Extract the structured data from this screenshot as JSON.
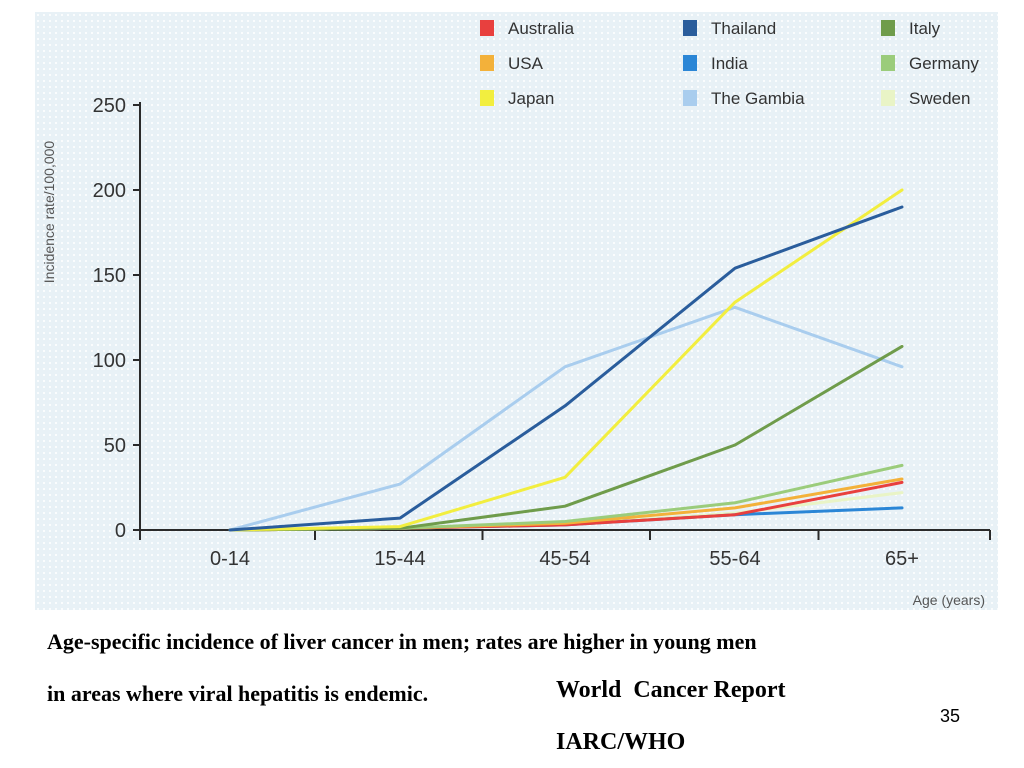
{
  "chart_data": {
    "type": "line",
    "title": "",
    "xlabel": "Age (years)",
    "ylabel": "Incidence rate/100,000",
    "categories": [
      "0-14",
      "15-44",
      "45-54",
      "55-64",
      "65+"
    ],
    "yticks": [
      0,
      50,
      100,
      150,
      200,
      250
    ],
    "ylim": [
      0,
      250
    ],
    "grid": false,
    "legend_position": "top-right",
    "series": [
      {
        "name": "Australia",
        "color": "#e8403e",
        "values": [
          0,
          1,
          3,
          9,
          28
        ]
      },
      {
        "name": "USA",
        "color": "#f3b13a",
        "values": [
          0,
          1,
          4,
          13,
          30
        ]
      },
      {
        "name": "Japan",
        "color": "#f2ee3f",
        "values": [
          0,
          2,
          31,
          134,
          200
        ]
      },
      {
        "name": "Thailand",
        "color": "#2a5d9c",
        "values": [
          0,
          7,
          73,
          154,
          190
        ]
      },
      {
        "name": "India",
        "color": "#2b86d6",
        "values": [
          0,
          1,
          3,
          9,
          13
        ]
      },
      {
        "name": "The Gambia",
        "color": "#a9cdee",
        "values": [
          0,
          27,
          96,
          131,
          96
        ]
      },
      {
        "name": "Italy",
        "color": "#6f9c4b",
        "values": [
          0,
          1,
          14,
          50,
          108
        ]
      },
      {
        "name": "Germany",
        "color": "#9bcc7b",
        "values": [
          0,
          1,
          5,
          16,
          38
        ]
      },
      {
        "name": "Sweden",
        "color": "#e9f4c6",
        "values": [
          0,
          1,
          3,
          10,
          22
        ]
      }
    ]
  },
  "caption": {
    "line1": "Age-specific incidence of liver cancer in men; rates are higher in young men",
    "line2": "in areas where viral hepatitis is endemic."
  },
  "source": {
    "line1": "World  Cancer Report",
    "line2": "IARC/WHO"
  },
  "slide_number": "35"
}
